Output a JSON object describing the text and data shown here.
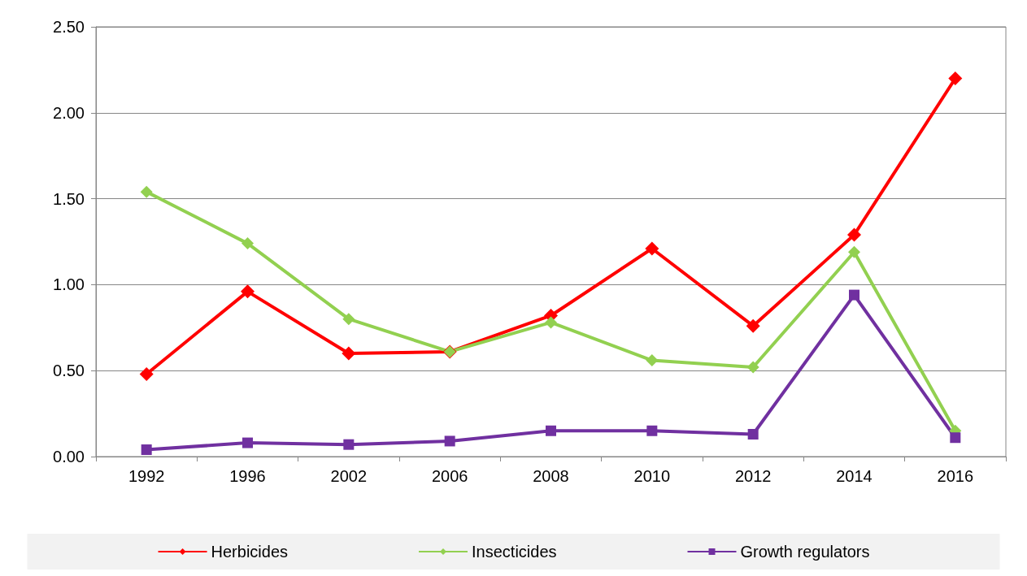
{
  "chart_data": {
    "type": "line",
    "categories": [
      "1992",
      "1996",
      "2002",
      "2006",
      "2008",
      "2010",
      "2012",
      "2014",
      "2016"
    ],
    "ylim": [
      0,
      2.5
    ],
    "yticks": [
      {
        "value": 0,
        "label": "0.00"
      },
      {
        "value": 0.5,
        "label": "0.50"
      },
      {
        "value": 1,
        "label": "1.00"
      },
      {
        "value": 1.5,
        "label": "1.50"
      },
      {
        "value": 2,
        "label": "2.00"
      },
      {
        "value": 2.5,
        "label": "2.50"
      }
    ],
    "grid": "y",
    "legend": "bottom",
    "line_style": "solid",
    "series": [
      {
        "name": "Herbicides",
        "color": "#ff0000",
        "marker": "diamond",
        "values": [
          0.48,
          0.96,
          0.6,
          0.61,
          0.82,
          1.21,
          0.76,
          1.29,
          2.2
        ]
      },
      {
        "name": "Insecticides",
        "color": "#92d050",
        "marker": "diamond",
        "values": [
          1.54,
          1.24,
          0.8,
          0.61,
          0.78,
          0.56,
          0.52,
          1.19,
          0.15
        ]
      },
      {
        "name": "Growth regulators",
        "color": "#7030a0",
        "marker": "square",
        "values": [
          0.04,
          0.08,
          0.07,
          0.09,
          0.15,
          0.15,
          0.13,
          0.94,
          0.11
        ]
      }
    ]
  }
}
